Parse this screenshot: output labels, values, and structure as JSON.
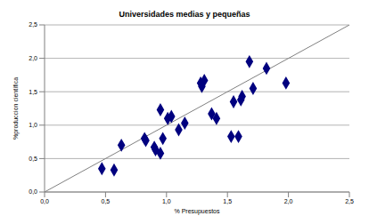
{
  "chart_data": {
    "type": "scatter",
    "title": "Universidades medias y pequeñas",
    "x_label": "% Presupuestos",
    "y_label": "%produccion científica",
    "x": [
      0.47,
      0.57,
      0.63,
      0.82,
      0.83,
      0.9,
      0.91,
      0.95,
      0.95,
      0.97,
      1.01,
      1.04,
      1.1,
      1.15,
      1.28,
      1.29,
      1.31,
      1.37,
      1.41,
      1.53,
      1.55,
      1.59,
      1.61,
      1.62,
      1.68,
      1.71,
      1.82,
      1.98
    ],
    "values": [
      0.35,
      0.33,
      0.7,
      0.8,
      0.77,
      0.67,
      0.63,
      0.58,
      1.23,
      0.8,
      1.1,
      1.13,
      0.93,
      1.03,
      1.63,
      1.58,
      1.67,
      1.17,
      1.1,
      0.83,
      1.35,
      0.83,
      1.38,
      1.43,
      1.95,
      1.55,
      1.85,
      1.63
    ],
    "color": "#00007f",
    "marker": "diamond",
    "diagonal": {
      "x": [
        0,
        2.5
      ],
      "y": [
        0,
        2.5
      ]
    },
    "xlim": [
      0,
      2.5
    ],
    "ylim": [
      0,
      2.5
    ],
    "xticks": [
      {
        "value": 0,
        "label": "0,0"
      },
      {
        "value": 0.5,
        "label": "0,5"
      },
      {
        "value": 1,
        "label": "1,0"
      },
      {
        "value": 1.5,
        "label": "1,5"
      },
      {
        "value": 2,
        "label": "2,0"
      },
      {
        "value": 2.5,
        "label": "2,5"
      }
    ],
    "yticks": [
      {
        "value": 0,
        "label": "0,0"
      },
      {
        "value": 0.5,
        "label": "0,5"
      },
      {
        "value": 1,
        "label": "1,0"
      },
      {
        "value": 1.5,
        "label": "1,5"
      },
      {
        "value": 2,
        "label": "2,0"
      },
      {
        "value": 2.5,
        "label": "2,5"
      }
    ],
    "grid": true
  }
}
